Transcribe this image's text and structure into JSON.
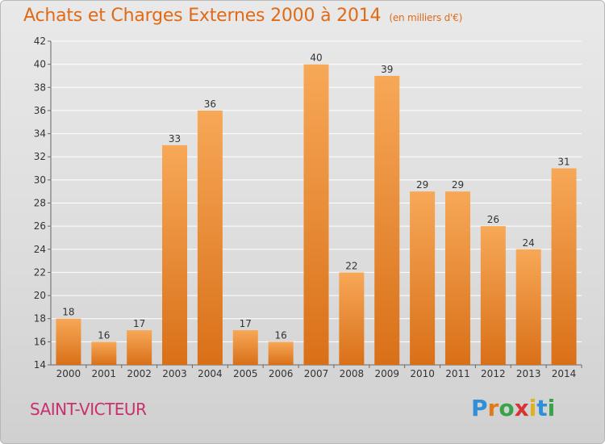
{
  "header": {
    "title": "Achats et Charges Externes 2000 à 2014",
    "subtitle": "(en milliers d'€)"
  },
  "footer": {
    "commune": "SAINT-VICTEUR",
    "logo": [
      "P",
      "r",
      "o",
      "x",
      "i",
      "t",
      "i"
    ]
  },
  "colors": {
    "title": "#e06a16",
    "bar_top": "#f7a857",
    "bar_bottom": "#d97018",
    "commune": "#c8306e",
    "logo": [
      "#2f8fd8",
      "#e07a1a",
      "#3aa34a",
      "#d83434",
      "#e0b020",
      "#2f8fd8",
      "#3aa34a"
    ]
  },
  "chart_data": {
    "type": "bar",
    "categories": [
      "2000",
      "2001",
      "2002",
      "2003",
      "2004",
      "2005",
      "2006",
      "2007",
      "2008",
      "2009",
      "2010",
      "2011",
      "2012",
      "2013",
      "2014"
    ],
    "values": [
      18,
      16,
      17,
      33,
      36,
      17,
      16,
      40,
      22,
      39,
      29,
      29,
      26,
      24,
      31
    ],
    "ylim": [
      14,
      42
    ],
    "yticks": [
      14,
      16,
      18,
      20,
      22,
      24,
      26,
      28,
      30,
      32,
      34,
      36,
      38,
      40,
      42
    ],
    "grid": true,
    "data_labels": true
  }
}
